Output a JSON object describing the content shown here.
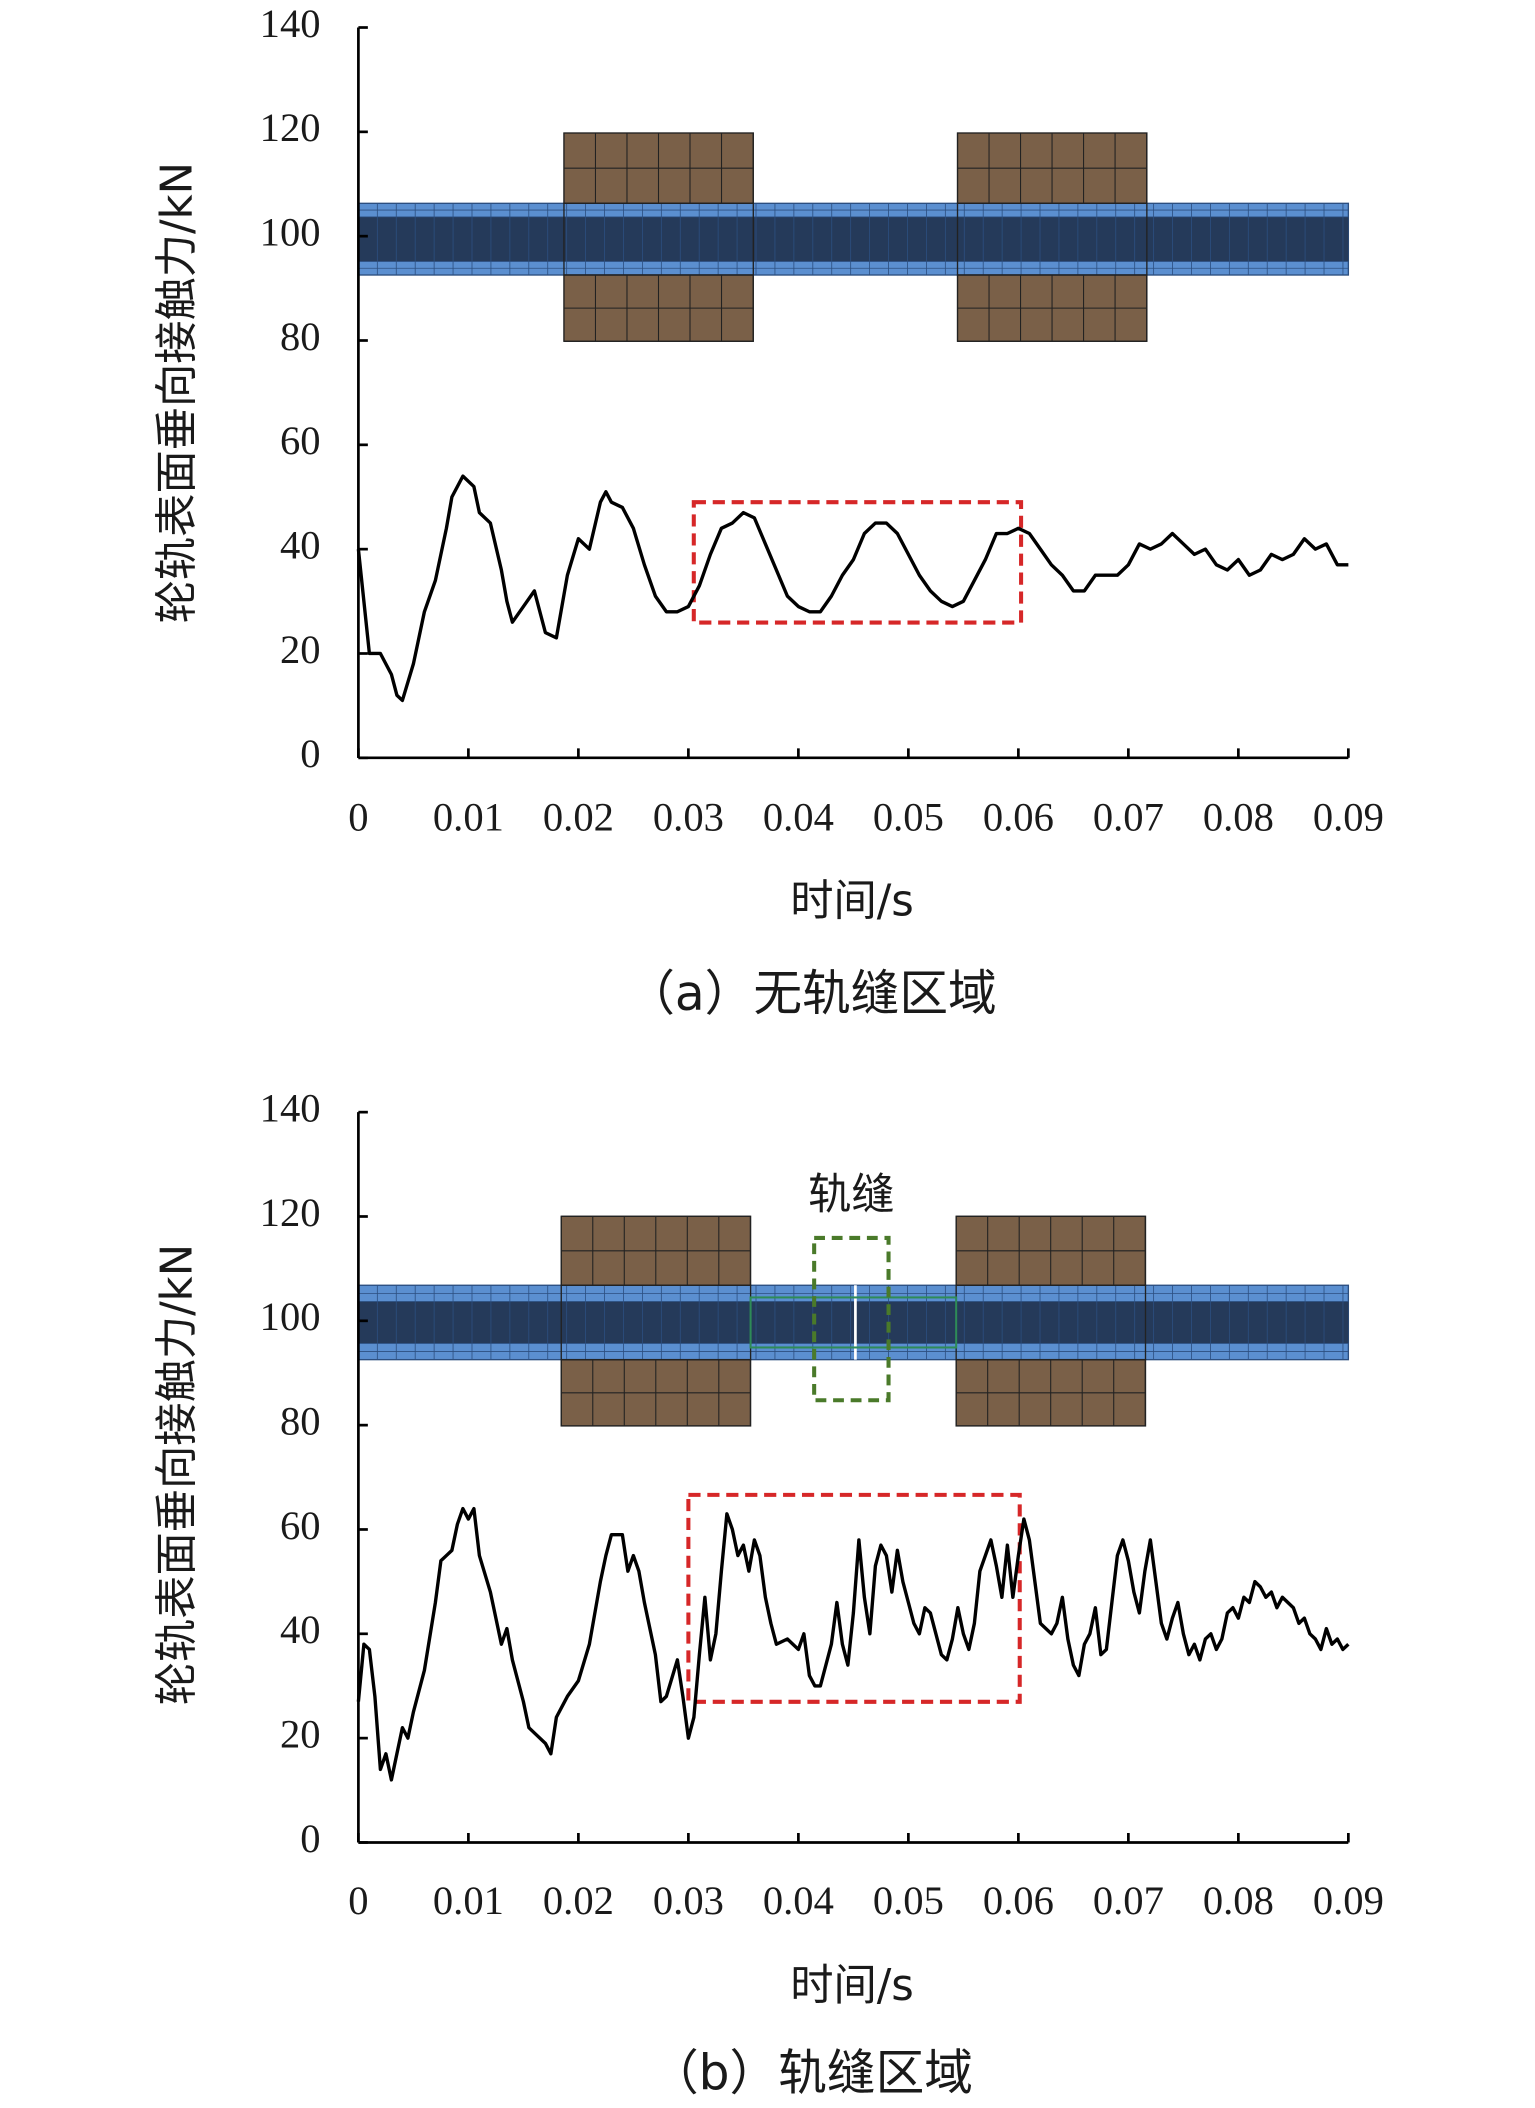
{
  "chart_data": [
    {
      "type": "line",
      "ylabel": "轮轨表面垂向接触力/kN",
      "xlabel": "时间/s",
      "caption": "（a）无轨缝区域",
      "xlim": [
        0,
        0.09
      ],
      "ylim": [
        0,
        140
      ],
      "xticks": [
        0,
        0.01,
        0.02,
        0.03,
        0.04,
        0.05,
        0.06,
        0.07,
        0.08,
        0.09
      ],
      "yticks": [
        0,
        20,
        40,
        60,
        80,
        100,
        120,
        140
      ],
      "color": "#000000",
      "x": [
        0,
        0.001,
        0.002,
        0.003,
        0.0035,
        0.004,
        0.005,
        0.006,
        0.007,
        0.008,
        0.0085,
        0.0095,
        0.0105,
        0.011,
        0.012,
        0.013,
        0.0135,
        0.014,
        0.015,
        0.016,
        0.017,
        0.018,
        0.019,
        0.02,
        0.021,
        0.022,
        0.0225,
        0.023,
        0.024,
        0.025,
        0.026,
        0.027,
        0.028,
        0.029,
        0.03,
        0.031,
        0.032,
        0.033,
        0.034,
        0.035,
        0.036,
        0.037,
        0.038,
        0.039,
        0.04,
        0.041,
        0.042,
        0.043,
        0.044,
        0.045,
        0.046,
        0.047,
        0.048,
        0.049,
        0.05,
        0.051,
        0.052,
        0.053,
        0.054,
        0.055,
        0.056,
        0.057,
        0.058,
        0.059,
        0.06,
        0.061,
        0.062,
        0.063,
        0.064,
        0.065,
        0.066,
        0.067,
        0.068,
        0.069,
        0.07,
        0.071,
        0.072,
        0.073,
        0.074,
        0.075,
        0.076,
        0.077,
        0.078,
        0.079,
        0.08,
        0.081,
        0.082,
        0.083,
        0.084,
        0.085,
        0.086,
        0.087,
        0.088,
        0.089,
        0.09
      ],
      "values": [
        40,
        20,
        20,
        16,
        12,
        11,
        18,
        28,
        34,
        44,
        50,
        54,
        52,
        47,
        45,
        36,
        30,
        26,
        29,
        32,
        24,
        23,
        35,
        42,
        40,
        49,
        51,
        49,
        48,
        44,
        37,
        31,
        28,
        28,
        29,
        33,
        39,
        44,
        45,
        47,
        46,
        41,
        36,
        31,
        29,
        28,
        28,
        31,
        35,
        38,
        43,
        45,
        45,
        43,
        39,
        35,
        32,
        30,
        29,
        30,
        34,
        38,
        43,
        43,
        44,
        43,
        40,
        37,
        35,
        32,
        32,
        35,
        35,
        35,
        37,
        41,
        40,
        41,
        43,
        41,
        39,
        40,
        37,
        36,
        38,
        35,
        36,
        39,
        38,
        39,
        42,
        40,
        41,
        37,
        37
      ]
    },
    {
      "type": "line",
      "ylabel": "轮轨表面垂向接触力/kN",
      "xlabel": "时间/s",
      "caption": "（b）轨缝区域",
      "annotations": [
        "轨缝"
      ],
      "xlim": [
        0,
        0.09
      ],
      "ylim": [
        0,
        140
      ],
      "xticks": [
        0,
        0.01,
        0.02,
        0.03,
        0.04,
        0.05,
        0.06,
        0.07,
        0.08,
        0.09
      ],
      "yticks": [
        0,
        20,
        40,
        60,
        80,
        100,
        120,
        140
      ],
      "color": "#000000",
      "x": [
        0,
        0.0005,
        0.001,
        0.0015,
        0.002,
        0.0025,
        0.003,
        0.0035,
        0.004,
        0.0045,
        0.005,
        0.006,
        0.007,
        0.0075,
        0.008,
        0.0085,
        0.009,
        0.0095,
        0.01,
        0.0105,
        0.011,
        0.012,
        0.013,
        0.0135,
        0.014,
        0.015,
        0.0155,
        0.016,
        0.017,
        0.0175,
        0.018,
        0.019,
        0.02,
        0.021,
        0.022,
        0.0225,
        0.023,
        0.024,
        0.0245,
        0.025,
        0.0255,
        0.026,
        0.027,
        0.0275,
        0.028,
        0.029,
        0.0295,
        0.03,
        0.0305,
        0.031,
        0.0315,
        0.032,
        0.0325,
        0.033,
        0.0335,
        0.034,
        0.0345,
        0.035,
        0.0355,
        0.036,
        0.0365,
        0.037,
        0.0375,
        0.038,
        0.039,
        0.04,
        0.0405,
        0.041,
        0.0415,
        0.042,
        0.043,
        0.0435,
        0.044,
        0.0445,
        0.045,
        0.0455,
        0.046,
        0.0465,
        0.047,
        0.0475,
        0.048,
        0.0485,
        0.049,
        0.0495,
        0.05,
        0.0505,
        0.051,
        0.0515,
        0.052,
        0.053,
        0.0535,
        0.054,
        0.0545,
        0.055,
        0.0555,
        0.056,
        0.0565,
        0.057,
        0.0575,
        0.058,
        0.0585,
        0.059,
        0.0595,
        0.06,
        0.0605,
        0.061,
        0.0615,
        0.062,
        0.063,
        0.0635,
        0.064,
        0.0645,
        0.065,
        0.0655,
        0.066,
        0.0665,
        0.067,
        0.0675,
        0.068,
        0.069,
        0.0695,
        0.07,
        0.0705,
        0.071,
        0.0715,
        0.072,
        0.0725,
        0.073,
        0.0735,
        0.074,
        0.0745,
        0.075,
        0.0755,
        0.076,
        0.0765,
        0.077,
        0.0775,
        0.078,
        0.0785,
        0.079,
        0.0795,
        0.08,
        0.0805,
        0.081,
        0.0815,
        0.082,
        0.0825,
        0.083,
        0.0835,
        0.084,
        0.0845,
        0.085,
        0.0855,
        0.086,
        0.0865,
        0.087,
        0.0875,
        0.088,
        0.0885,
        0.089,
        0.0895,
        0.09
      ],
      "values": [
        27,
        38,
        37,
        28,
        14,
        17,
        12,
        17,
        22,
        20,
        25,
        33,
        46,
        54,
        55,
        56,
        61,
        64,
        62,
        64,
        55,
        48,
        38,
        41,
        35,
        27,
        22,
        21,
        19,
        17,
        24,
        28,
        31,
        38,
        50,
        55,
        59,
        59,
        52,
        55,
        52,
        46,
        36,
        27,
        28,
        35,
        28,
        20,
        24,
        36,
        47,
        35,
        40,
        52,
        63,
        60,
        55,
        57,
        52,
        58,
        55,
        47,
        42,
        38,
        39,
        37,
        40,
        32,
        30,
        30,
        38,
        46,
        38,
        34,
        44,
        58,
        47,
        40,
        53,
        57,
        55,
        48,
        56,
        50,
        46,
        42,
        40,
        45,
        44,
        36,
        35,
        39,
        45,
        40,
        37,
        42,
        52,
        55,
        58,
        53,
        47,
        57,
        47,
        55,
        62,
        58,
        50,
        42,
        40,
        42,
        47,
        39,
        34,
        32,
        38,
        40,
        45,
        36,
        37,
        55,
        58,
        54,
        48,
        44,
        52,
        58,
        50,
        42,
        39,
        43,
        46,
        40,
        36,
        38,
        35,
        39,
        40,
        37,
        39,
        44,
        45,
        43,
        47,
        46,
        50,
        49,
        47,
        48,
        45,
        47,
        46,
        45,
        42,
        43,
        40,
        39,
        37,
        41,
        38,
        39,
        37,
        38
      ]
    }
  ]
}
